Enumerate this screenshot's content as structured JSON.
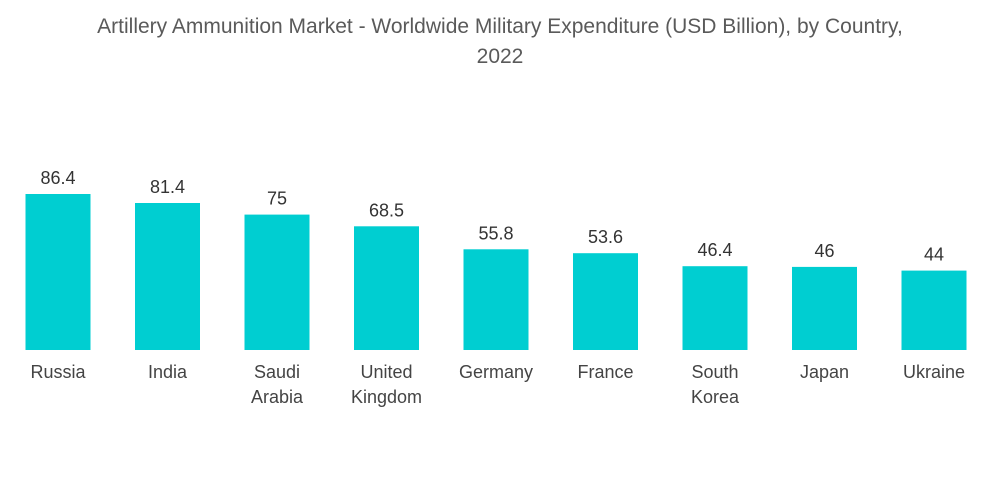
{
  "chart_data": {
    "type": "bar",
    "title_lines": [
      "Artillery Ammunition Market - Worldwide Military Expenditure (USD Billion), by Country,",
      "2022"
    ],
    "categories": [
      "Russia",
      "India",
      "Saudi Arabia",
      "United Kingdom",
      "Germany",
      "France",
      "South Korea",
      "Japan",
      "Ukraine"
    ],
    "category_lines": [
      [
        "Russia"
      ],
      [
        "India"
      ],
      [
        "Saudi",
        "Arabia"
      ],
      [
        "United",
        "Kingdom"
      ],
      [
        "Germany"
      ],
      [
        "France"
      ],
      [
        "South",
        "Korea"
      ],
      [
        "Japan"
      ],
      [
        "Ukraine"
      ]
    ],
    "values": [
      86.4,
      81.4,
      75,
      68.5,
      55.8,
      53.6,
      46.4,
      46,
      44
    ],
    "value_labels": [
      "86.4",
      "81.4",
      "75",
      "68.5",
      "55.8",
      "53.6",
      "46.4",
      "46",
      "44"
    ],
    "xlabel": "",
    "ylabel": "",
    "ylim": [
      0,
      86.4
    ],
    "grid": false,
    "legend": "none",
    "bar_color": "#00CED1"
  }
}
